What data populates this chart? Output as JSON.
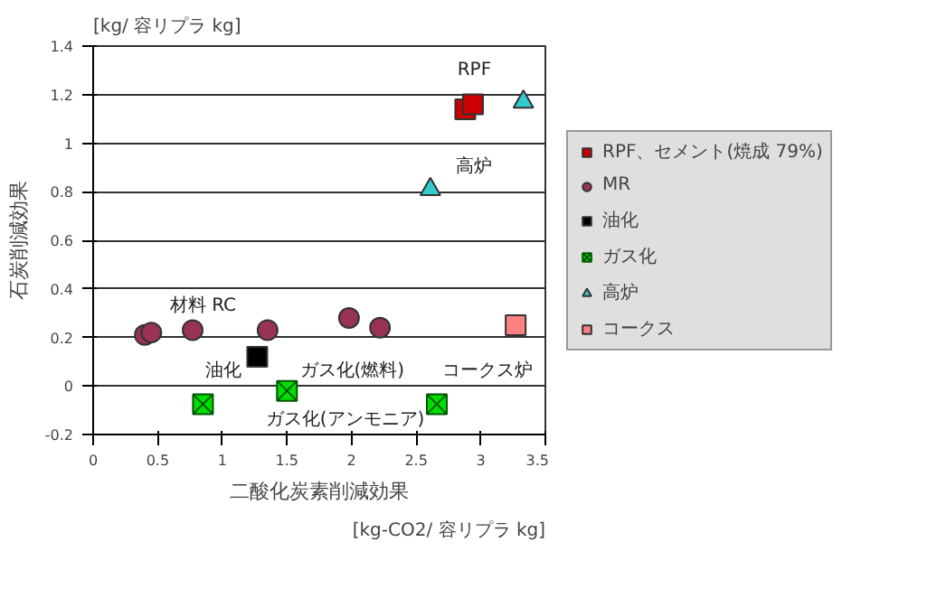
{
  "chart_data": {
    "type": "scatter",
    "xlabel": "二酸化炭素削減効果",
    "ylabel": "石炭削減効果",
    "xlim": [
      0,
      3.5
    ],
    "ylim": [
      -0.2,
      1.4
    ],
    "xticks": [
      0,
      0.5,
      1,
      1.5,
      2,
      2.5,
      3,
      3.5
    ],
    "yticks": [
      -0.2,
      0,
      0.2,
      0.4,
      0.6,
      0.8,
      1,
      1.2,
      1.4
    ],
    "grid": "y",
    "legend": "right",
    "series": [
      {
        "name": "RPF、セメント(焼成 79%)",
        "color": "#cc0000",
        "marker": "square",
        "x": [
          2.88,
          2.94
        ],
        "values": [
          1.14,
          1.16
        ]
      },
      {
        "name": "MR",
        "color": "#993355",
        "marker": "circle",
        "x": [
          0.4,
          0.45,
          0.77,
          1.35,
          1.98,
          2.22
        ],
        "values": [
          0.21,
          0.22,
          0.23,
          0.23,
          0.28,
          0.24
        ]
      },
      {
        "name": "油化",
        "color": "#000000",
        "marker": "square",
        "x": [
          1.27
        ],
        "values": [
          0.12
        ]
      },
      {
        "name": "ガス化",
        "color": "#00dd00",
        "marker": "cross",
        "x": [
          0.85,
          1.5,
          2.66
        ],
        "values": [
          -0.075,
          -0.02,
          -0.075
        ]
      },
      {
        "name": "高炉",
        "color": "#33cccc",
        "marker": "triangle",
        "x": [
          2.61,
          3.33
        ],
        "values": [
          0.81,
          1.17
        ]
      },
      {
        "name": "コークス",
        "color": "#ff8080",
        "marker": "square",
        "x": [
          3.27
        ],
        "values": [
          0.25
        ]
      }
    ],
    "annotations": [
      "[kg/ 容リプラ kg]",
      "[kg-CO2/ 容リプラ kg]",
      "RPF",
      "材料 RC",
      "高炉",
      "油化",
      "ガス化(燃料)",
      "ガス化(アンモニア)",
      "コークス炉"
    ]
  }
}
